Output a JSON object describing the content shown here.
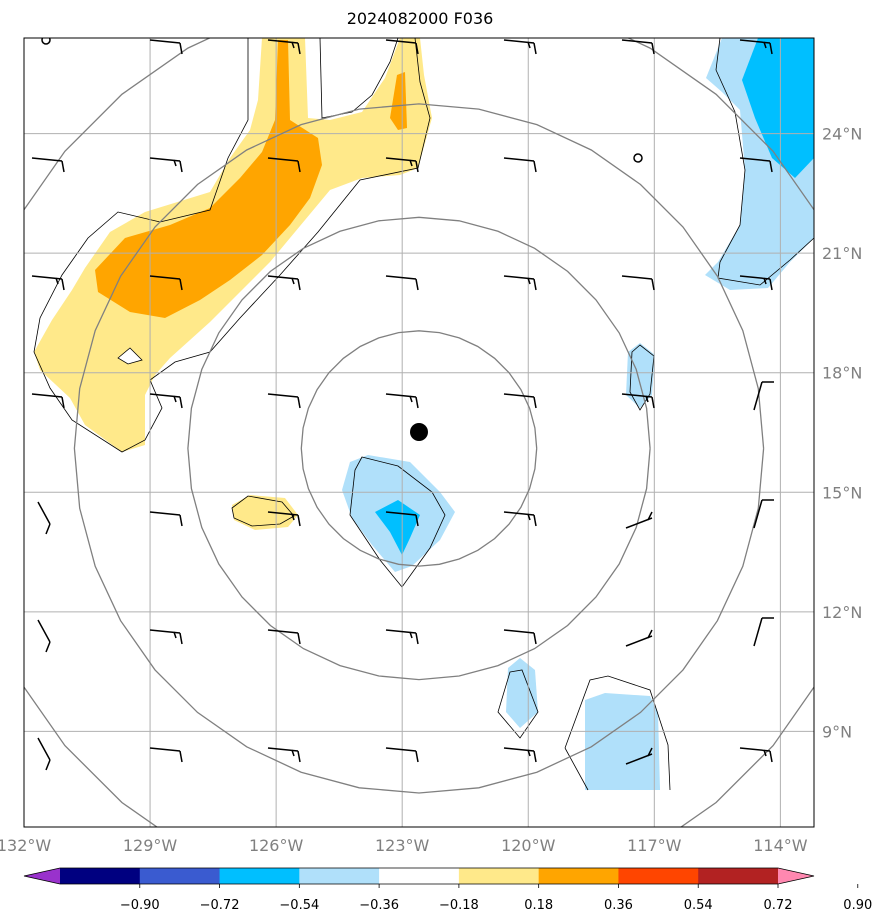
{
  "title": "2024082000 F036",
  "map": {
    "lon_range": [
      -132,
      -113.2
    ],
    "lat_range": [
      6.6,
      26.4
    ],
    "lon_ticks": [
      {
        "value": -132,
        "label": "132°W"
      },
      {
        "value": -129,
        "label": "129°W"
      },
      {
        "value": -126,
        "label": "126°W"
      },
      {
        "value": -123,
        "label": "123°W"
      },
      {
        "value": -120,
        "label": "120°W"
      },
      {
        "value": -117,
        "label": "117°W"
      },
      {
        "value": -114,
        "label": "114°W"
      }
    ],
    "lat_ticks": [
      {
        "value": 24,
        "label": "24°N"
      },
      {
        "value": 21,
        "label": "21°N"
      },
      {
        "value": 18,
        "label": "18°N"
      },
      {
        "value": 15,
        "label": "15°N"
      },
      {
        "value": 12,
        "label": "12°N"
      },
      {
        "value": 9,
        "label": "9°N"
      }
    ],
    "gridlines": true,
    "center": {
      "lon": -122.6,
      "lat": 16.1
    },
    "range_rings_deg": [
      2.8,
      5.5,
      8.2,
      11.0
    ],
    "fill_colors": {
      "neg_lt_-0.90": "#9932cc",
      "-0.90_-0.72": "#000080",
      "-0.72_-0.54": "#3a5bd0",
      "-0.54_-0.36": "#00bfff",
      "-0.36_-0.18": "#b0e0fa",
      "-0.18_0.18": "#ffffff",
      "0.18_0.36": "#ffe98a",
      "0.36_0.54": "#ffa500",
      "0.54_0.72": "#ff4500",
      "0.72_0.90": "#b22222",
      "gt_0.90": "#ff88b0"
    }
  },
  "colorbar": {
    "labels": [
      "−0.90",
      "−0.72",
      "−0.54",
      "−0.36",
      "−0.18",
      "0.18",
      "0.36",
      "0.54",
      "0.72",
      "0.90"
    ],
    "colors": [
      "#9932cc",
      "#000080",
      "#3a5bd0",
      "#00bfff",
      "#b0e0fa",
      "#ffffff",
      "#ffe98a",
      "#ffa500",
      "#ff4500",
      "#b22222",
      "#ff88b0"
    ]
  }
}
